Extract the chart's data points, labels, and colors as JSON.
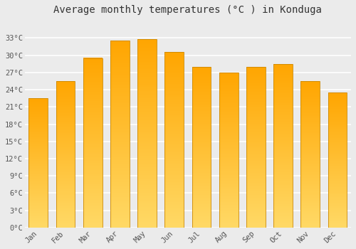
{
  "title": "Average monthly temperatures (°C ) in Konduga",
  "months": [
    "Jan",
    "Feb",
    "Mar",
    "Apr",
    "May",
    "Jun",
    "Jul",
    "Aug",
    "Sep",
    "Oct",
    "Nov",
    "Dec"
  ],
  "values": [
    22.5,
    25.5,
    29.5,
    32.5,
    32.8,
    30.5,
    28.0,
    27.0,
    28.0,
    28.5,
    25.5,
    23.5
  ],
  "bar_color_bottom": "#FFD966",
  "bar_color_top": "#FFA500",
  "bar_edge_color": "#CC8800",
  "ylim": [
    0,
    36
  ],
  "yticks": [
    0,
    3,
    6,
    9,
    12,
    15,
    18,
    21,
    24,
    27,
    30,
    33
  ],
  "ytick_labels": [
    "0°C",
    "3°C",
    "6°C",
    "9°C",
    "12°C",
    "15°C",
    "18°C",
    "21°C",
    "24°C",
    "27°C",
    "30°C",
    "33°C"
  ],
  "background_color": "#ebebeb",
  "grid_color": "#ffffff",
  "title_fontsize": 10,
  "tick_fontsize": 7.5,
  "tick_color": "#555555",
  "font_family": "monospace",
  "bar_width": 0.7,
  "n_grad": 200
}
